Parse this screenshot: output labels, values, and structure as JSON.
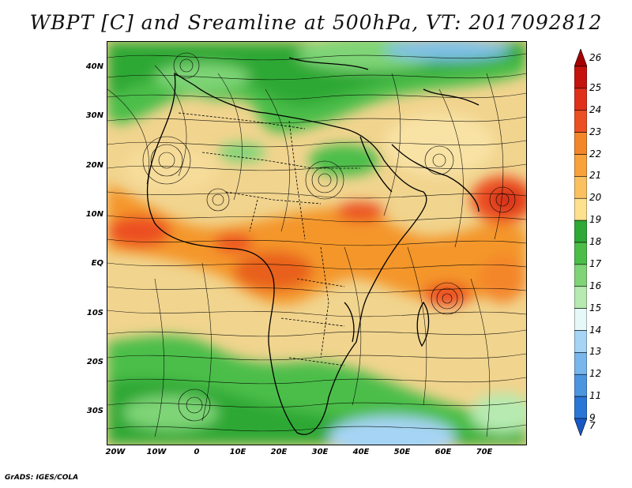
{
  "title": "WBPT [C] and Sreamline at 500hPa, VT: 2017092812",
  "footer": "GrADS: IGES/COLA",
  "lat_labels": [
    "40N",
    "30N",
    "20N",
    "10N",
    "EQ",
    "10S",
    "20S",
    "30S"
  ],
  "lon_labels": [
    "20W",
    "10W",
    "0",
    "10E",
    "20E",
    "30E",
    "40E",
    "50E",
    "60E",
    "70E"
  ],
  "colorbar": {
    "labels": [
      "26",
      "25",
      "24",
      "23",
      "22",
      "21",
      "20",
      "19",
      "18",
      "17",
      "16",
      "15",
      "14",
      "13",
      "12",
      "11",
      "9",
      "7"
    ],
    "colors": [
      "#a50000",
      "#c4130c",
      "#e0301a",
      "#ec5022",
      "#f4862a",
      "#f8a23c",
      "#fbc160",
      "#fde18e",
      "#2ea836",
      "#4cbe48",
      "#7ed476",
      "#b6eab0",
      "#e6f8f8",
      "#a6d4f4",
      "#78b6ec",
      "#4c96e0",
      "#2a76d6",
      "#1858c6"
    ]
  },
  "legend_colors": {
    "cool_blue": "#3a78d8",
    "green": "#4cbe48",
    "light_orange": "#f2d690",
    "orange": "#f4962c",
    "red_orange": "#e8481c"
  }
}
